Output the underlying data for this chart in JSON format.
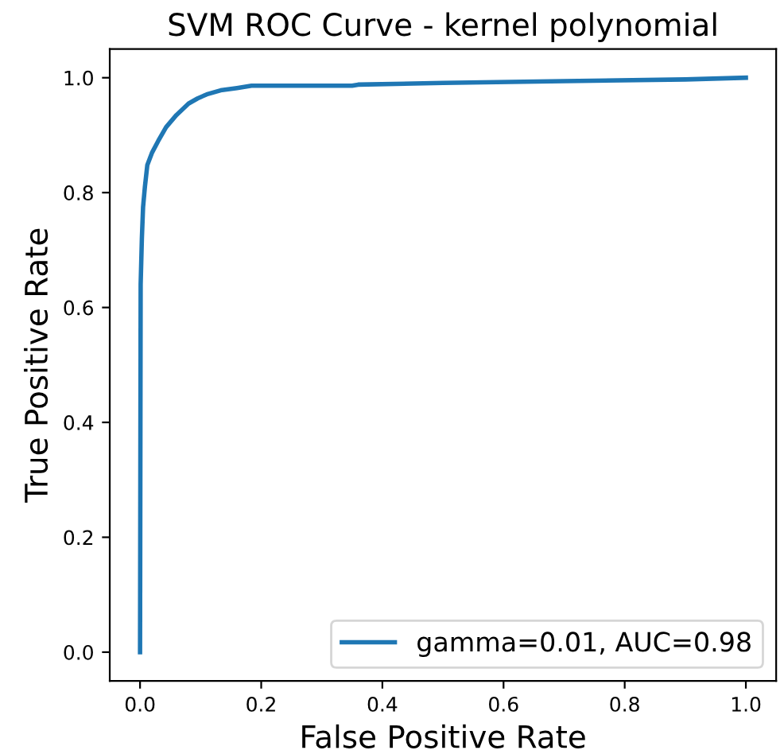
{
  "chart_data": {
    "type": "line",
    "title": "SVM ROC Curve - kernel polynomial",
    "xlabel": "False Positive Rate",
    "ylabel": "True Positive Rate",
    "series": [
      {
        "name": "gamma=0.01, AUC=0.98",
        "color": "#1f77b4",
        "x": [
          0.0,
          0.001,
          0.003,
          0.005,
          0.008,
          0.012,
          0.02,
          0.03,
          0.043,
          0.06,
          0.08,
          0.095,
          0.11,
          0.133,
          0.16,
          0.184,
          0.35,
          0.36,
          0.5,
          0.7,
          0.9,
          1.0
        ],
        "values": [
          0.0,
          0.64,
          0.72,
          0.775,
          0.81,
          0.848,
          0.87,
          0.89,
          0.914,
          0.935,
          0.955,
          0.964,
          0.971,
          0.978,
          0.982,
          0.986,
          0.986,
          0.988,
          0.991,
          0.994,
          0.997,
          1.0
        ]
      }
    ],
    "xlim": [
      -0.05,
      1.05
    ],
    "ylim": [
      -0.05,
      1.05
    ],
    "xticks": [
      {
        "value": 0,
        "label": "0.0"
      },
      0.2,
      0.4,
      0.6,
      0.8,
      {
        "value": 1,
        "label": "1.0"
      }
    ],
    "yticks": [
      {
        "value": 0,
        "label": "0.0"
      },
      0.2,
      0.4,
      0.6,
      0.8,
      {
        "value": 1,
        "label": "1.0"
      }
    ],
    "legend": "bottom right",
    "grid": false,
    "marker": "none",
    "line_style": "solid"
  }
}
